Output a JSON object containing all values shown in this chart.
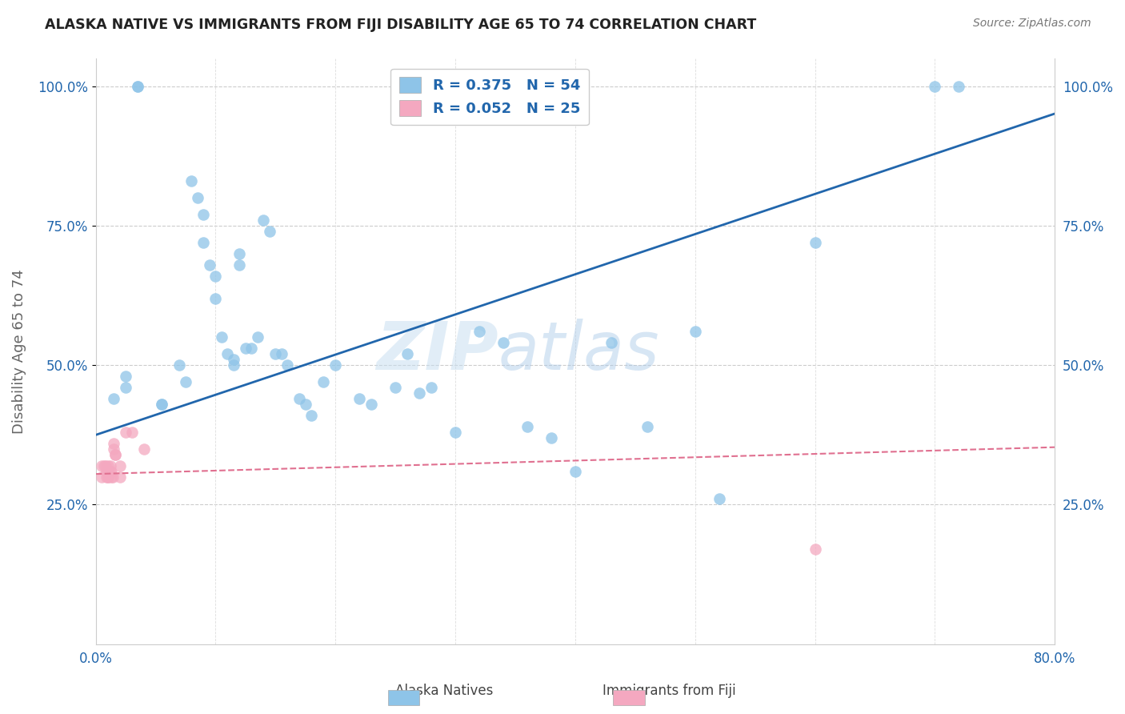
{
  "title": "ALASKA NATIVE VS IMMIGRANTS FROM FIJI DISABILITY AGE 65 TO 74 CORRELATION CHART",
  "source": "Source: ZipAtlas.com",
  "ylabel": "Disability Age 65 to 74",
  "xlim": [
    0.0,
    0.8
  ],
  "ylim": [
    0.0,
    1.05
  ],
  "xticks": [
    0.0,
    0.1,
    0.2,
    0.3,
    0.4,
    0.5,
    0.6,
    0.7,
    0.8
  ],
  "xticklabels": [
    "0.0%",
    "",
    "",
    "",
    "",
    "",
    "",
    "",
    "80.0%"
  ],
  "ytick_positions": [
    0.25,
    0.5,
    0.75,
    1.0
  ],
  "ytick_labels": [
    "25.0%",
    "50.0%",
    "75.0%",
    "100.0%"
  ],
  "blue_color": "#8ec4e8",
  "pink_color": "#f4a8c0",
  "blue_line_color": "#2166ac",
  "pink_line_color": "#e07090",
  "legend_text_color": "#2166ac",
  "watermark": "ZIPatlas",
  "alaska_x": [
    0.015,
    0.035,
    0.035,
    0.055,
    0.055,
    0.07,
    0.075,
    0.08,
    0.085,
    0.09,
    0.09,
    0.095,
    0.1,
    0.1,
    0.105,
    0.11,
    0.115,
    0.115,
    0.12,
    0.12,
    0.125,
    0.13,
    0.135,
    0.14,
    0.145,
    0.15,
    0.155,
    0.16,
    0.17,
    0.175,
    0.18,
    0.19,
    0.2,
    0.22,
    0.23,
    0.25,
    0.26,
    0.27,
    0.28,
    0.3,
    0.32,
    0.34,
    0.36,
    0.38,
    0.4,
    0.43,
    0.46,
    0.5,
    0.52,
    0.6,
    0.7,
    0.72,
    0.025,
    0.025
  ],
  "alaska_y": [
    0.44,
    1.0,
    1.0,
    0.43,
    0.43,
    0.5,
    0.47,
    0.83,
    0.8,
    0.77,
    0.72,
    0.68,
    0.66,
    0.62,
    0.55,
    0.52,
    0.51,
    0.5,
    0.7,
    0.68,
    0.53,
    0.53,
    0.55,
    0.76,
    0.74,
    0.52,
    0.52,
    0.5,
    0.44,
    0.43,
    0.41,
    0.47,
    0.5,
    0.44,
    0.43,
    0.46,
    0.52,
    0.45,
    0.46,
    0.38,
    0.56,
    0.54,
    0.39,
    0.37,
    0.31,
    0.54,
    0.39,
    0.56,
    0.26,
    0.72,
    1.0,
    1.0,
    0.48,
    0.46
  ],
  "fiji_x": [
    0.005,
    0.005,
    0.007,
    0.008,
    0.009,
    0.009,
    0.01,
    0.01,
    0.01,
    0.01,
    0.012,
    0.012,
    0.013,
    0.013,
    0.014,
    0.015,
    0.015,
    0.016,
    0.016,
    0.02,
    0.02,
    0.025,
    0.03,
    0.04,
    0.6
  ],
  "fiji_y": [
    0.32,
    0.3,
    0.32,
    0.32,
    0.31,
    0.3,
    0.32,
    0.31,
    0.3,
    0.3,
    0.32,
    0.31,
    0.31,
    0.3,
    0.3,
    0.36,
    0.35,
    0.34,
    0.34,
    0.32,
    0.3,
    0.38,
    0.38,
    0.35,
    0.17
  ],
  "blue_intercept": 0.375,
  "blue_slope": 0.72,
  "pink_intercept": 0.305,
  "pink_slope": 0.06
}
